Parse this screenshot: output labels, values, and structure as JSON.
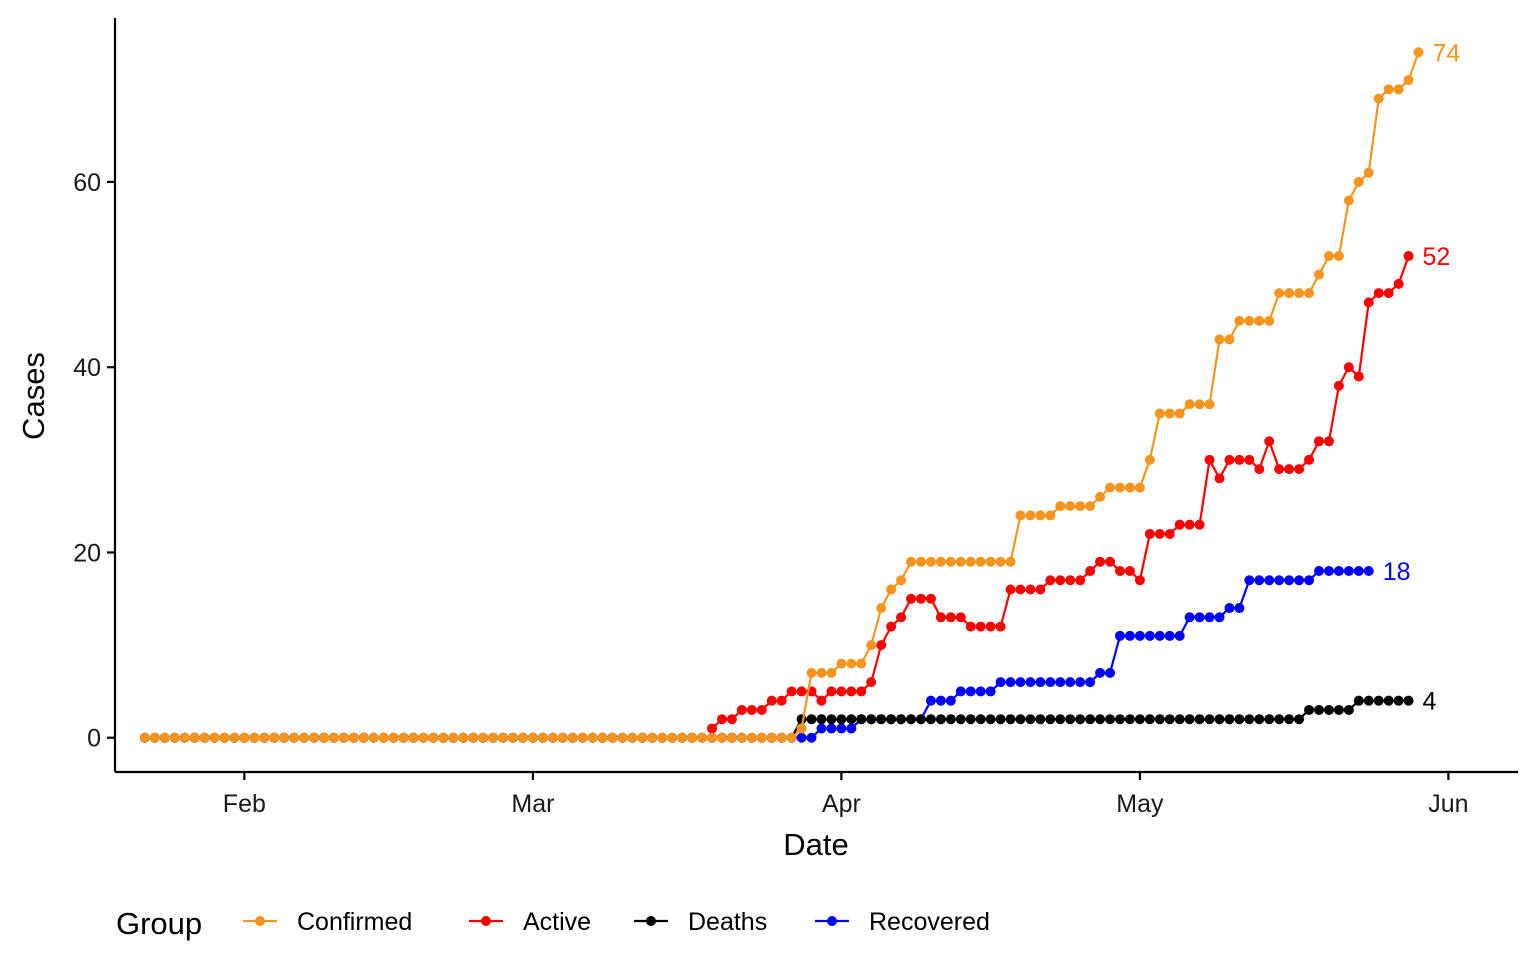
{
  "chart_data": {
    "type": "line",
    "xlabel": "Date",
    "ylabel": "Cases",
    "x_ticks": [
      "Feb",
      "Mar",
      "Apr",
      "May",
      "Jun"
    ],
    "x_tick_dates": [
      "2020-02-01",
      "2020-03-01",
      "2020-04-01",
      "2020-05-01",
      "2020-06-01"
    ],
    "y_ticks": [
      "0",
      "20",
      "40",
      "60"
    ],
    "y_tick_values": [
      0,
      20,
      40,
      60
    ],
    "x_range": [
      "2020-01-19",
      "2020-06-08"
    ],
    "ylim": [
      -3.7,
      77.7
    ],
    "grid": false,
    "legend": {
      "title": "Group",
      "position": "bottom",
      "entries": [
        "Confirmed",
        "Active",
        "Deaths",
        "Recovered"
      ]
    },
    "series": [
      {
        "name": "Confirmed",
        "color": "#F7941D",
        "end_label": "74",
        "values": [
          [
            "2020-01-22",
            0
          ],
          [
            "2020-03-20",
            0
          ],
          [
            "2020-03-28",
            1
          ],
          [
            "2020-03-29",
            7
          ],
          [
            "2020-03-31",
            7
          ],
          [
            "2020-04-01",
            8
          ],
          [
            "2020-04-03",
            8
          ],
          [
            "2020-04-04",
            10
          ],
          [
            "2020-04-05",
            14
          ],
          [
            "2020-04-06",
            16
          ],
          [
            "2020-04-07",
            17
          ],
          [
            "2020-04-08",
            19
          ],
          [
            "2020-04-18",
            19
          ],
          [
            "2020-04-19",
            24
          ],
          [
            "2020-04-22",
            24
          ],
          [
            "2020-04-23",
            25
          ],
          [
            "2020-04-26",
            25
          ],
          [
            "2020-04-27",
            26
          ],
          [
            "2020-04-28",
            27
          ],
          [
            "2020-05-01",
            27
          ],
          [
            "2020-05-02",
            30
          ],
          [
            "2020-05-03",
            35
          ],
          [
            "2020-05-05",
            35
          ],
          [
            "2020-05-06",
            36
          ],
          [
            "2020-05-08",
            36
          ],
          [
            "2020-05-09",
            43
          ],
          [
            "2020-05-10",
            43
          ],
          [
            "2020-05-11",
            45
          ],
          [
            "2020-05-14",
            45
          ],
          [
            "2020-05-15",
            48
          ],
          [
            "2020-05-18",
            48
          ],
          [
            "2020-05-19",
            50
          ],
          [
            "2020-05-20",
            52
          ],
          [
            "2020-05-21",
            52
          ],
          [
            "2020-05-22",
            58
          ],
          [
            "2020-05-23",
            60
          ],
          [
            "2020-05-24",
            61
          ],
          [
            "2020-05-25",
            69
          ],
          [
            "2020-05-26",
            70
          ],
          [
            "2020-05-27",
            70
          ],
          [
            "2020-05-28",
            71
          ],
          [
            "2020-05-29",
            74
          ]
        ]
      },
      {
        "name": "Active",
        "color": "#FF0000",
        "end_label": "52",
        "values": [
          [
            "2020-03-19",
            1
          ],
          [
            "2020-03-20",
            2
          ],
          [
            "2020-03-21",
            2
          ],
          [
            "2020-03-22",
            3
          ],
          [
            "2020-03-24",
            3
          ],
          [
            "2020-03-25",
            4
          ],
          [
            "2020-03-26",
            4
          ],
          [
            "2020-03-27",
            5
          ],
          [
            "2020-03-29",
            5
          ],
          [
            "2020-03-30",
            4
          ],
          [
            "2020-03-31",
            5
          ],
          [
            "2020-04-03",
            5
          ],
          [
            "2020-04-04",
            6
          ],
          [
            "2020-04-05",
            10
          ],
          [
            "2020-04-06",
            12
          ],
          [
            "2020-04-07",
            13
          ],
          [
            "2020-04-08",
            15
          ],
          [
            "2020-04-10",
            15
          ],
          [
            "2020-04-11",
            13
          ],
          [
            "2020-04-13",
            13
          ],
          [
            "2020-04-14",
            12
          ],
          [
            "2020-04-17",
            12
          ],
          [
            "2020-04-18",
            16
          ],
          [
            "2020-04-21",
            16
          ],
          [
            "2020-04-22",
            17
          ],
          [
            "2020-04-25",
            17
          ],
          [
            "2020-04-26",
            18
          ],
          [
            "2020-04-27",
            19
          ],
          [
            "2020-04-28",
            19
          ],
          [
            "2020-04-29",
            18
          ],
          [
            "2020-04-30",
            18
          ],
          [
            "2020-05-01",
            17
          ],
          [
            "2020-05-02",
            22
          ],
          [
            "2020-05-04",
            22
          ],
          [
            "2020-05-05",
            23
          ],
          [
            "2020-05-07",
            23
          ],
          [
            "2020-05-08",
            30
          ],
          [
            "2020-05-09",
            28
          ],
          [
            "2020-05-10",
            30
          ],
          [
            "2020-05-12",
            30
          ],
          [
            "2020-05-13",
            29
          ],
          [
            "2020-05-14",
            32
          ],
          [
            "2020-05-15",
            29
          ],
          [
            "2020-05-17",
            29
          ],
          [
            "2020-05-18",
            30
          ],
          [
            "2020-05-19",
            32
          ],
          [
            "2020-05-20",
            32
          ],
          [
            "2020-05-21",
            38
          ],
          [
            "2020-05-22",
            40
          ],
          [
            "2020-05-23",
            39
          ],
          [
            "2020-05-24",
            47
          ],
          [
            "2020-05-25",
            48
          ],
          [
            "2020-05-26",
            48
          ],
          [
            "2020-05-27",
            49
          ],
          [
            "2020-05-28",
            52
          ]
        ]
      },
      {
        "name": "Deaths",
        "color": "#000000",
        "end_label": "4",
        "values": [
          [
            "2020-01-22",
            0
          ],
          [
            "2020-03-27",
            0
          ],
          [
            "2020-03-28",
            2
          ],
          [
            "2020-04-15",
            2
          ],
          [
            "2020-05-17",
            2
          ],
          [
            "2020-05-18",
            3
          ],
          [
            "2020-05-22",
            3
          ],
          [
            "2020-05-23",
            4
          ],
          [
            "2020-05-28",
            4
          ]
        ]
      },
      {
        "name": "Recovered",
        "color": "#0000FF",
        "end_label": "18",
        "values": [
          [
            "2020-01-22",
            0
          ],
          [
            "2020-03-29",
            0
          ],
          [
            "2020-03-30",
            1
          ],
          [
            "2020-04-02",
            1
          ],
          [
            "2020-04-03",
            2
          ],
          [
            "2020-04-09",
            2
          ],
          [
            "2020-04-10",
            4
          ],
          [
            "2020-04-12",
            4
          ],
          [
            "2020-04-13",
            5
          ],
          [
            "2020-04-16",
            5
          ],
          [
            "2020-04-17",
            6
          ],
          [
            "2020-04-26",
            6
          ],
          [
            "2020-04-27",
            7
          ],
          [
            "2020-04-28",
            7
          ],
          [
            "2020-04-29",
            11
          ],
          [
            "2020-05-05",
            11
          ],
          [
            "2020-05-06",
            13
          ],
          [
            "2020-05-09",
            13
          ],
          [
            "2020-05-10",
            14
          ],
          [
            "2020-05-11",
            14
          ],
          [
            "2020-05-12",
            17
          ],
          [
            "2020-05-18",
            17
          ],
          [
            "2020-05-19",
            18
          ],
          [
            "2020-05-24",
            18
          ]
        ]
      }
    ]
  }
}
